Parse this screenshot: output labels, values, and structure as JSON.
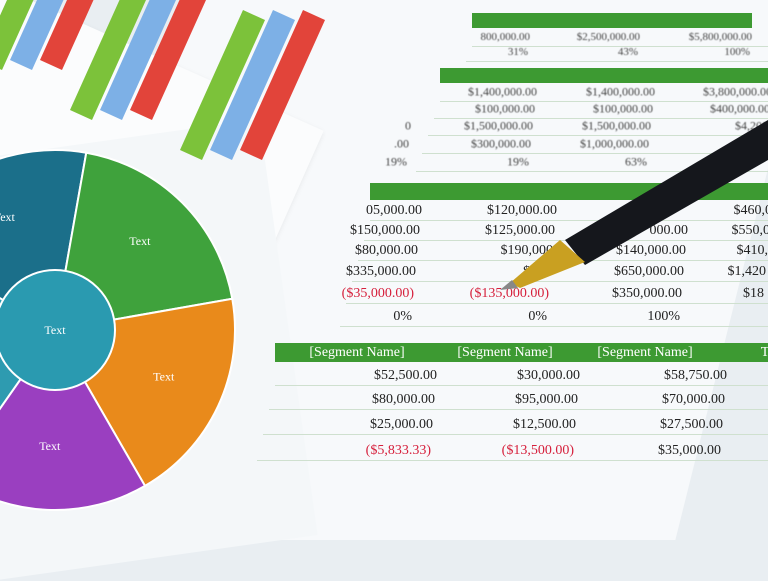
{
  "colors": {
    "band": "#3d9a32",
    "negative": "#d6203c",
    "pie": [
      "#1b6f8a",
      "#3fa23c",
      "#e98a1b",
      "#9a3fc0",
      "#2e9bb0"
    ],
    "bars": [
      "#e2443a",
      "#7db0e6",
      "#7cc23a"
    ]
  },
  "pie": {
    "labels": [
      "Text",
      "Text",
      "Text",
      "Text",
      "Text"
    ],
    "center_label": "Text"
  },
  "table1": {
    "rows": [
      [
        "800,000.00",
        "$2,500,000.00",
        "$5,800,000.00"
      ],
      [
        "31%",
        "43%",
        "100%"
      ]
    ]
  },
  "table2": {
    "rows": [
      [
        "",
        "$1,400,000.00",
        "$1,400,000.00",
        "$3,800,000.00"
      ],
      [
        "",
        "$100,000.00",
        "$100,000.00",
        "$400,000.00"
      ],
      [
        "0",
        "$1,500,000.00",
        "$1,500,000.00",
        "$4,200"
      ],
      [
        ".00",
        "$300,000.00",
        "$1,000,000.00",
        ""
      ],
      [
        "19%",
        "19%",
        "63%",
        ""
      ]
    ]
  },
  "table3": {
    "rows": [
      [
        "05,000.00",
        "$120,000.00",
        "",
        "$460,0"
      ],
      [
        "$150,000.00",
        "$125,000.00",
        "000.00",
        "$550,0"
      ],
      [
        "$80,000.00",
        "$190,000",
        "$140,000.00",
        "$410,"
      ],
      [
        "$335,000.00",
        "$435",
        "$650,000.00",
        "$1,420"
      ],
      [
        "($35,000.00)",
        "($135,000.00)",
        "$350,000.00",
        "$18"
      ],
      [
        "0%",
        "0%",
        "100%",
        ""
      ]
    ]
  },
  "table4": {
    "headers": [
      "[Segment Name]",
      "[Segment Name]",
      "[Segment Name]",
      "T"
    ],
    "rows": [
      [
        "$52,500.00",
        "$30,000.00",
        "$58,750.00"
      ],
      [
        "$80,000.00",
        "$95,000.00",
        "$70,000.00"
      ],
      [
        "$25,000.00",
        "$12,500.00",
        "$27,500.00"
      ],
      [
        "($5,833.33)",
        "($13,500.00)",
        "$35,000.00"
      ]
    ]
  },
  "pen": {
    "icon": "ballpoint-pen"
  }
}
